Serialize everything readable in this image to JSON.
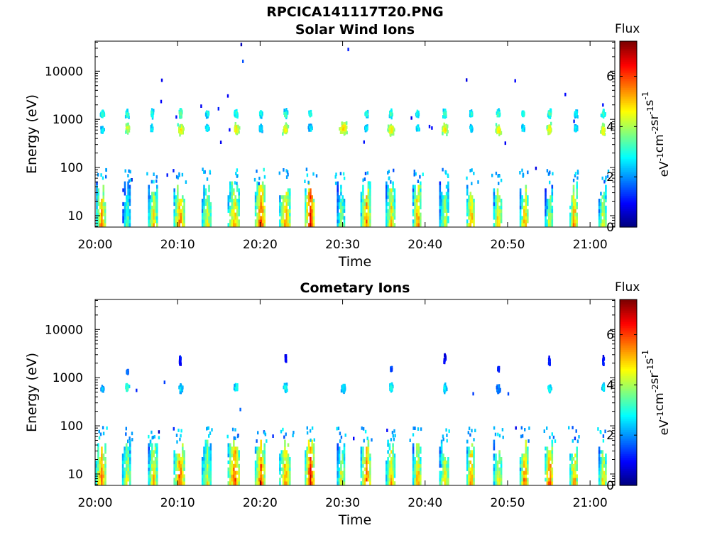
{
  "figure": {
    "title": "RPCICA141117T20.PNG"
  },
  "colorbar": {
    "label": "Flux",
    "ticks": [
      0,
      2,
      4,
      6
    ],
    "range": [
      0,
      7.4
    ],
    "colormap": "jet",
    "units_base": "eV",
    "units_parts": [
      {
        "t": "eV",
        "sup": "-1"
      },
      {
        "t": "cm",
        "sup": "-2"
      },
      {
        "t": "sr",
        "sup": "-1"
      },
      {
        "t": "s",
        "sup": "-1"
      }
    ]
  },
  "axes": {
    "xlabel": "Time",
    "ylabel": "Energy (eV)",
    "xticks": [
      "20:00",
      "20:10",
      "20:20",
      "20:30",
      "20:40",
      "20:50",
      "21:00"
    ],
    "xlim": [
      "20:00",
      "21:03"
    ],
    "yticks": [
      {
        "value": 10,
        "label": "10"
      },
      {
        "value": 100,
        "label": "100"
      },
      {
        "value": 1000,
        "label": "1000"
      },
      {
        "value": 10000,
        "label": "10000"
      }
    ],
    "ylim": [
      5.8,
      42000
    ],
    "yscale": "log"
  },
  "chart_data": [
    {
      "type": "heatmap",
      "title": "Solar Wind Ions",
      "xlabel": "Time",
      "ylabel": "Energy (eV)",
      "yscale": "log",
      "colorbar_label": "Flux",
      "clusters": [
        {
          "t": 0.8,
          "e": 1300,
          "flux": 3.4,
          "w": 0.6,
          "d": 0.1
        },
        {
          "t": 0.8,
          "e": 600,
          "flux": 3.0,
          "w": 0.5,
          "d": 0.08
        },
        {
          "t": 3.8,
          "e": 1300,
          "flux": 3.5,
          "w": 0.6,
          "d": 0.1
        },
        {
          "t": 3.8,
          "e": 650,
          "flux": 4.8,
          "w": 0.8,
          "d": 0.12
        },
        {
          "t": 6.8,
          "e": 1300,
          "flux": 3.3,
          "w": 0.5,
          "d": 0.1
        },
        {
          "t": 6.8,
          "e": 650,
          "flux": 3.0,
          "w": 0.5,
          "d": 0.08
        },
        {
          "t": 10.3,
          "e": 1300,
          "flux": 4.0,
          "w": 0.6,
          "d": 0.12
        },
        {
          "t": 10.3,
          "e": 600,
          "flux": 5.0,
          "w": 1.0,
          "d": 0.14
        },
        {
          "t": 13.5,
          "e": 1300,
          "flux": 3.3,
          "w": 0.5,
          "d": 0.08
        },
        {
          "t": 13.5,
          "e": 650,
          "flux": 3.0,
          "w": 0.5,
          "d": 0.08
        },
        {
          "t": 17.0,
          "e": 1300,
          "flux": 3.5,
          "w": 0.6,
          "d": 0.1
        },
        {
          "t": 17.0,
          "e": 620,
          "flux": 5.0,
          "w": 1.0,
          "d": 0.14
        },
        {
          "t": 20.0,
          "e": 1300,
          "flux": 3.3,
          "w": 0.5,
          "d": 0.08
        },
        {
          "t": 20.0,
          "e": 650,
          "flux": 3.0,
          "w": 0.5,
          "d": 0.08
        },
        {
          "t": 23.0,
          "e": 1300,
          "flux": 3.6,
          "w": 0.6,
          "d": 0.1
        },
        {
          "t": 23.0,
          "e": 620,
          "flux": 5.0,
          "w": 0.9,
          "d": 0.14
        },
        {
          "t": 26.0,
          "e": 1300,
          "flux": 3.3,
          "w": 0.5,
          "d": 0.08
        },
        {
          "t": 26.0,
          "e": 650,
          "flux": 3.0,
          "w": 0.5,
          "d": 0.08
        },
        {
          "t": 30.0,
          "e": 650,
          "flux": 5.2,
          "w": 1.2,
          "d": 0.15
        },
        {
          "t": 32.8,
          "e": 1300,
          "flux": 3.4,
          "w": 0.5,
          "d": 0.08
        },
        {
          "t": 32.8,
          "e": 650,
          "flux": 3.0,
          "w": 0.5,
          "d": 0.08
        },
        {
          "t": 35.8,
          "e": 1300,
          "flux": 3.6,
          "w": 0.6,
          "d": 0.1
        },
        {
          "t": 35.8,
          "e": 600,
          "flux": 5.0,
          "w": 1.0,
          "d": 0.14
        },
        {
          "t": 39.0,
          "e": 1300,
          "flux": 3.3,
          "w": 0.5,
          "d": 0.08
        },
        {
          "t": 39.0,
          "e": 650,
          "flux": 3.0,
          "w": 0.5,
          "d": 0.08
        },
        {
          "t": 42.3,
          "e": 1300,
          "flux": 3.6,
          "w": 0.6,
          "d": 0.1
        },
        {
          "t": 42.3,
          "e": 620,
          "flux": 5.0,
          "w": 0.9,
          "d": 0.14
        },
        {
          "t": 45.5,
          "e": 1300,
          "flux": 3.3,
          "w": 0.5,
          "d": 0.08
        },
        {
          "t": 45.5,
          "e": 650,
          "flux": 3.0,
          "w": 0.5,
          "d": 0.08
        },
        {
          "t": 48.8,
          "e": 1300,
          "flux": 3.6,
          "w": 0.6,
          "d": 0.1
        },
        {
          "t": 48.8,
          "e": 600,
          "flux": 5.0,
          "w": 0.9,
          "d": 0.14
        },
        {
          "t": 51.8,
          "e": 1300,
          "flux": 3.3,
          "w": 0.5,
          "d": 0.08
        },
        {
          "t": 51.8,
          "e": 650,
          "flux": 3.0,
          "w": 0.5,
          "d": 0.08
        },
        {
          "t": 55.0,
          "e": 1300,
          "flux": 3.6,
          "w": 0.6,
          "d": 0.1
        },
        {
          "t": 55.0,
          "e": 620,
          "flux": 5.0,
          "w": 0.8,
          "d": 0.14
        },
        {
          "t": 58.2,
          "e": 1300,
          "flux": 3.3,
          "w": 0.5,
          "d": 0.08
        },
        {
          "t": 58.2,
          "e": 650,
          "flux": 3.0,
          "w": 0.5,
          "d": 0.08
        },
        {
          "t": 61.5,
          "e": 1300,
          "flux": 3.6,
          "w": 0.6,
          "d": 0.1
        },
        {
          "t": 61.5,
          "e": 600,
          "flux": 5.0,
          "w": 0.8,
          "d": 0.14
        }
      ],
      "low_energy_bursts": [
        {
          "t": 0.7,
          "flux": 5.6,
          "w": 1.2
        },
        {
          "t": 3.8,
          "flux": 3.6,
          "w": 1.0
        },
        {
          "t": 7.0,
          "flux": 5.0,
          "w": 1.2
        },
        {
          "t": 10.2,
          "flux": 5.8,
          "w": 1.4
        },
        {
          "t": 13.5,
          "flux": 4.8,
          "w": 1.2
        },
        {
          "t": 16.8,
          "flux": 5.4,
          "w": 1.5
        },
        {
          "t": 20.0,
          "flux": 6.2,
          "w": 1.3
        },
        {
          "t": 23.0,
          "flux": 5.6,
          "w": 1.4
        },
        {
          "t": 26.0,
          "flux": 6.8,
          "w": 1.2
        },
        {
          "t": 29.8,
          "flux": 4.2,
          "w": 1.0
        },
        {
          "t": 32.8,
          "flux": 5.8,
          "w": 1.3
        },
        {
          "t": 35.8,
          "flux": 5.2,
          "w": 1.2
        },
        {
          "t": 39.0,
          "flux": 5.6,
          "w": 1.1
        },
        {
          "t": 42.3,
          "flux": 4.6,
          "w": 1.2
        },
        {
          "t": 45.5,
          "flux": 5.8,
          "w": 1.0
        },
        {
          "t": 48.8,
          "flux": 5.2,
          "w": 1.1
        },
        {
          "t": 52.0,
          "flux": 5.4,
          "w": 1.1
        },
        {
          "t": 55.0,
          "flux": 4.4,
          "w": 1.0
        },
        {
          "t": 58.0,
          "flux": 5.6,
          "w": 1.0
        },
        {
          "t": 61.5,
          "flux": 4.8,
          "w": 1.0
        }
      ],
      "background": {
        "emin": 60,
        "emax": 40000,
        "flux": 1.0,
        "density": 0.012
      }
    },
    {
      "type": "heatmap",
      "title": "Cometary Ions",
      "xlabel": "Time",
      "ylabel": "Energy (eV)",
      "yscale": "log",
      "colorbar_label": "Flux",
      "clusters": [
        {
          "t": 0.8,
          "e": 580,
          "flux": 2.4,
          "w": 0.5,
          "d": 0.06
        },
        {
          "t": 3.8,
          "e": 620,
          "flux": 3.4,
          "w": 0.6,
          "d": 0.1
        },
        {
          "t": 3.8,
          "e": 1300,
          "flux": 1.8,
          "w": 0.3,
          "d": 0.05
        },
        {
          "t": 10.2,
          "e": 2200,
          "flux": 1.2,
          "w": 0.3,
          "d": 0.15
        },
        {
          "t": 10.3,
          "e": 600,
          "flux": 2.8,
          "w": 0.7,
          "d": 0.1
        },
        {
          "t": 17.0,
          "e": 620,
          "flux": 3.2,
          "w": 0.6,
          "d": 0.1
        },
        {
          "t": 23.0,
          "e": 2500,
          "flux": 1.0,
          "w": 0.2,
          "d": 0.08
        },
        {
          "t": 23.0,
          "e": 620,
          "flux": 3.2,
          "w": 0.6,
          "d": 0.1
        },
        {
          "t": 30.0,
          "e": 600,
          "flux": 3.0,
          "w": 0.7,
          "d": 0.1
        },
        {
          "t": 35.8,
          "e": 620,
          "flux": 3.2,
          "w": 0.6,
          "d": 0.1
        },
        {
          "t": 35.8,
          "e": 1500,
          "flux": 1.8,
          "w": 0.3,
          "d": 0.05
        },
        {
          "t": 42.3,
          "e": 2400,
          "flux": 1.0,
          "w": 0.3,
          "d": 0.12
        },
        {
          "t": 42.3,
          "e": 600,
          "flux": 3.0,
          "w": 0.5,
          "d": 0.1
        },
        {
          "t": 48.8,
          "e": 580,
          "flux": 2.2,
          "w": 0.6,
          "d": 0.1
        },
        {
          "t": 48.8,
          "e": 1500,
          "flux": 1.2,
          "w": 0.3,
          "d": 0.05
        },
        {
          "t": 55.0,
          "e": 600,
          "flux": 3.2,
          "w": 0.6,
          "d": 0.1
        },
        {
          "t": 55.0,
          "e": 2200,
          "flux": 1.2,
          "w": 0.3,
          "d": 0.12
        },
        {
          "t": 61.5,
          "e": 600,
          "flux": 3.0,
          "w": 0.5,
          "d": 0.1
        },
        {
          "t": 61.5,
          "e": 2200,
          "flux": 1.2,
          "w": 0.3,
          "d": 0.12
        }
      ],
      "low_energy_bursts": [
        {
          "t": 0.7,
          "flux": 5.8,
          "w": 1.3
        },
        {
          "t": 3.8,
          "flux": 4.8,
          "w": 1.1
        },
        {
          "t": 7.0,
          "flux": 5.2,
          "w": 1.2
        },
        {
          "t": 10.2,
          "flux": 6.0,
          "w": 1.4
        },
        {
          "t": 13.5,
          "flux": 4.6,
          "w": 1.2
        },
        {
          "t": 16.8,
          "flux": 6.2,
          "w": 1.5
        },
        {
          "t": 20.0,
          "flux": 6.0,
          "w": 1.3
        },
        {
          "t": 23.0,
          "flux": 5.6,
          "w": 1.4
        },
        {
          "t": 26.0,
          "flux": 6.6,
          "w": 1.2
        },
        {
          "t": 29.8,
          "flux": 4.8,
          "w": 1.0
        },
        {
          "t": 32.8,
          "flux": 6.0,
          "w": 1.3
        },
        {
          "t": 35.8,
          "flux": 5.2,
          "w": 1.2
        },
        {
          "t": 39.0,
          "flux": 5.4,
          "w": 1.1
        },
        {
          "t": 42.3,
          "flux": 5.0,
          "w": 1.2
        },
        {
          "t": 45.5,
          "flux": 5.8,
          "w": 1.0
        },
        {
          "t": 48.8,
          "flux": 5.0,
          "w": 1.1
        },
        {
          "t": 52.0,
          "flux": 5.8,
          "w": 1.1
        },
        {
          "t": 55.0,
          "flux": 6.2,
          "w": 1.0
        },
        {
          "t": 58.0,
          "flux": 5.6,
          "w": 1.0
        },
        {
          "t": 61.5,
          "flux": 5.0,
          "w": 1.0
        }
      ],
      "background": {
        "emin": 50,
        "emax": 3000,
        "flux": 1.2,
        "density": 0.006
      }
    }
  ]
}
